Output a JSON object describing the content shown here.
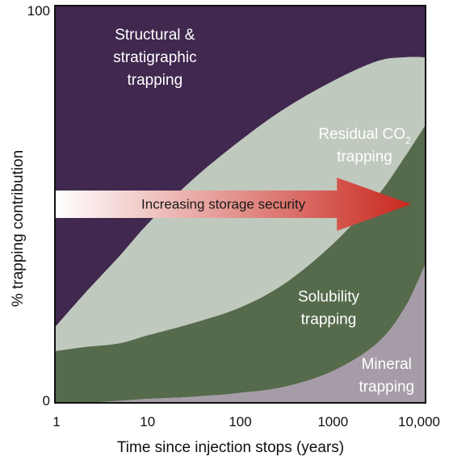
{
  "chart_data": {
    "type": "area",
    "stacking": "cumulative-percent",
    "x_scale": "log",
    "xlim": [
      1,
      10000
    ],
    "ylim": [
      0,
      100
    ],
    "xlabel": "Time since injection stops (years)",
    "ylabel": "% trapping contribution",
    "x_ticks": [
      "1",
      "10",
      "100",
      "1000",
      "10,000"
    ],
    "y_ticks": [
      "0",
      "100"
    ],
    "x": [
      1,
      2,
      5,
      10,
      30,
      100,
      300,
      1000,
      3000,
      6000,
      10000
    ],
    "series": [
      {
        "name": "Structural & stratigraphic trapping",
        "label_lines": [
          "Structural &",
          "stratigraphic",
          "trapping"
        ],
        "color": "#40284f",
        "text_color": "#ffffff",
        "cumulative_upper": [
          100,
          100,
          100,
          100,
          100,
          100,
          100,
          100,
          100,
          100,
          100
        ],
        "cumulative_lower": [
          19,
          27,
          37,
          45,
          56,
          66,
          74,
          81,
          86,
          87,
          87
        ]
      },
      {
        "name": "Residual CO2 trapping",
        "label_lines": [
          "Residual CO",
          "trapping"
        ],
        "label_subscript": "2",
        "color": "#bfc9bd",
        "text_color": "#ffffff",
        "cumulative_upper": [
          19,
          27,
          37,
          45,
          56,
          66,
          74,
          81,
          86,
          87,
          87
        ],
        "cumulative_lower": [
          13,
          14,
          15,
          17,
          20,
          24,
          30,
          40,
          52,
          62,
          70
        ]
      },
      {
        "name": "Solubility trapping",
        "label_lines": [
          "Solubility",
          "trapping"
        ],
        "color": "#566a4c",
        "text_color": "#ffffff",
        "cumulative_upper": [
          13,
          14,
          15,
          17,
          20,
          24,
          30,
          40,
          52,
          62,
          70
        ],
        "cumulative_lower": [
          0,
          0,
          0.5,
          1,
          1.5,
          2.5,
          4,
          8,
          15,
          24,
          35
        ]
      },
      {
        "name": "Mineral trapping",
        "label_lines": [
          "Mineral",
          "trapping"
        ],
        "color": "#a69ca8",
        "text_color": "#ffffff",
        "cumulative_upper": [
          0,
          0,
          0.5,
          1,
          1.5,
          2.5,
          4,
          8,
          15,
          24,
          35
        ],
        "cumulative_lower": [
          0,
          0,
          0,
          0,
          0,
          0,
          0,
          0,
          0,
          0,
          0
        ]
      }
    ],
    "annotation": {
      "text": "Increasing storage security",
      "type": "arrow",
      "direction": "right",
      "x_from": 1,
      "x_to": 7000,
      "y": 50,
      "gradient": [
        "#ffffff",
        "#c8281e"
      ]
    }
  }
}
